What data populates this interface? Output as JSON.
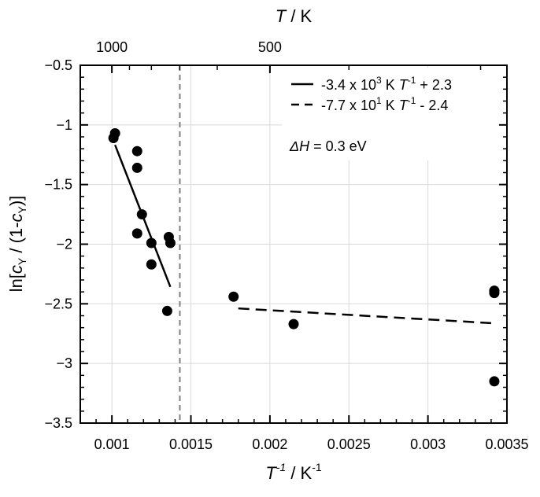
{
  "chart_data": {
    "type": "scatter",
    "xlabel": {
      "main": "T",
      "main_sup": "-1",
      "unit": " / K",
      "unit_sup": "-1"
    },
    "ylabel": {
      "prefix": "ln[",
      "c1": "c",
      "sub1": "Y",
      "mid": " / (1-",
      "c2": "c",
      "sub2": "Y",
      "suffix": ")]"
    },
    "top_axis_title": {
      "var": "T",
      "unit": " / K"
    },
    "xlim": [
      0.0008,
      0.0035
    ],
    "ylim": [
      -3.5,
      -0.5
    ],
    "x_ticks": [
      {
        "value": 0.001,
        "label": "0.001"
      },
      {
        "value": 0.0015,
        "label": "0.0015"
      },
      {
        "value": 0.002,
        "label": "0.002"
      },
      {
        "value": 0.0025,
        "label": "0.0025"
      },
      {
        "value": 0.003,
        "label": "0.003"
      },
      {
        "value": 0.0035,
        "label": "0.0035"
      }
    ],
    "y_ticks": [
      {
        "value": -0.5,
        "label": "−0.5"
      },
      {
        "value": -1,
        "label": "−1"
      },
      {
        "value": -1.5,
        "label": "−1.5"
      },
      {
        "value": -2,
        "label": "−2"
      },
      {
        "value": -2.5,
        "label": "−2.5"
      },
      {
        "value": -3,
        "label": "−3"
      },
      {
        "value": -3.5,
        "label": "−3.5"
      }
    ],
    "top_ticks": [
      {
        "temperature": 1000,
        "label": "1000"
      },
      {
        "temperature": 500,
        "label": "500"
      }
    ],
    "top_minor_ticks": [
      1000,
      900,
      800,
      700,
      600,
      500,
      400,
      300
    ],
    "grid": true,
    "vertical_reference_line": {
      "x": 0.00143,
      "style": "dashed",
      "color": "#808080"
    },
    "points": [
      {
        "x": 0.00101,
        "y": -1.11
      },
      {
        "x": 0.00102,
        "y": -1.07
      },
      {
        "x": 0.00116,
        "y": -1.22
      },
      {
        "x": 0.00116,
        "y": -1.36
      },
      {
        "x": 0.00116,
        "y": -1.91
      },
      {
        "x": 0.00119,
        "y": -1.75
      },
      {
        "x": 0.00125,
        "y": -1.99
      },
      {
        "x": 0.00125,
        "y": -2.17
      },
      {
        "x": 0.00136,
        "y": -1.94
      },
      {
        "x": 0.00137,
        "y": -1.99
      },
      {
        "x": 0.00135,
        "y": -2.56
      },
      {
        "x": 0.00177,
        "y": -2.44
      },
      {
        "x": 0.00215,
        "y": -2.67
      },
      {
        "x": 0.00342,
        "y": -2.39
      },
      {
        "x": 0.00342,
        "y": -2.41
      },
      {
        "x": 0.00342,
        "y": -3.15
      }
    ],
    "fits": [
      {
        "name": "high-temperature-fit",
        "style": "solid",
        "slope": -3400,
        "intercept": 2.3,
        "x_range": [
          0.00102,
          0.00137
        ]
      },
      {
        "name": "low-temperature-fit",
        "style": "dashed",
        "slope": -77,
        "intercept": -2.4,
        "x_range": [
          0.0018,
          0.0034
        ]
      }
    ],
    "legend": {
      "placement": "top-right",
      "entries": [
        {
          "style": "solid",
          "coef": "-3.4 x 10",
          "exp": "3",
          "unit": " K ",
          "var": "T",
          "var_sup": "-1",
          "tail": " + 2.3"
        },
        {
          "style": "dashed",
          "coef": "-7.7 x 10",
          "exp": "1",
          "unit": " K ",
          "var": "T",
          "var_sup": "-1",
          "tail": " - 2.4"
        }
      ]
    },
    "annotation": {
      "symbol": "ΔH",
      "text": " = 0.3 eV"
    }
  }
}
